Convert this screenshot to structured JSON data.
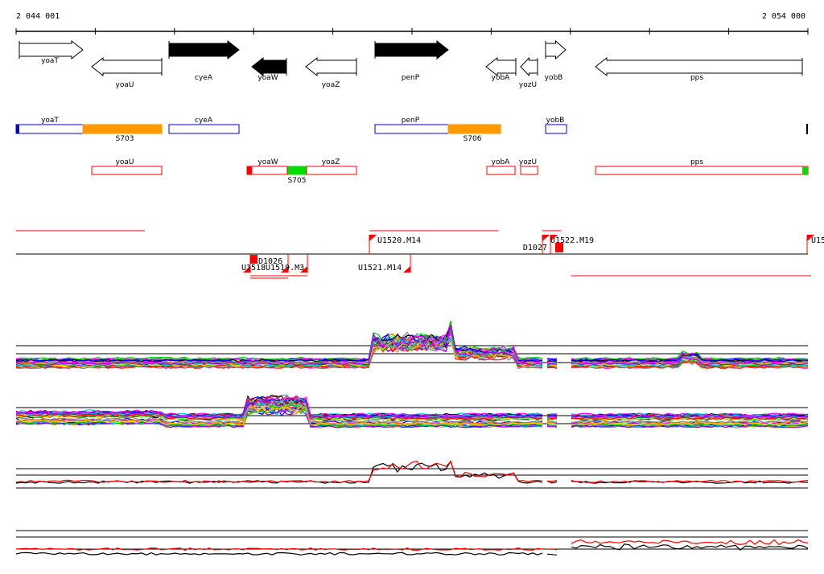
{
  "ruler": {
    "start_label": "2 044 001",
    "end_label": "2 054 000"
  },
  "genes": [
    {
      "label": "yoaT",
      "strand": "+",
      "filled": false
    },
    {
      "label": "yoaU",
      "strand": "-",
      "filled": false
    },
    {
      "label": "cyeA",
      "strand": "+",
      "filled": true
    },
    {
      "label": "yoaW",
      "strand": "-",
      "filled": true
    },
    {
      "label": "yoaZ",
      "strand": "-",
      "filled": false
    },
    {
      "label": "penP",
      "strand": "+",
      "filled": true
    },
    {
      "label": "yobA",
      "strand": "-",
      "filled": false
    },
    {
      "label": "yozU",
      "strand": "-",
      "filled": false
    },
    {
      "label": "yobB",
      "strand": "+",
      "filled": false
    },
    {
      "label": "pps",
      "strand": "-",
      "filled": false
    }
  ],
  "forward_features": [
    {
      "label": "yoaT",
      "kind": "gene"
    },
    {
      "label": "S703",
      "kind": "segment"
    },
    {
      "label": "cyeA",
      "kind": "gene"
    },
    {
      "label": "penP",
      "kind": "gene"
    },
    {
      "label": "S706",
      "kind": "segment"
    },
    {
      "label": "yobB",
      "kind": "gene"
    }
  ],
  "reverse_features": [
    {
      "label": "yoaU",
      "kind": "gene"
    },
    {
      "label": "yoaW",
      "kind": "gene"
    },
    {
      "label": "S705",
      "kind": "segment"
    },
    {
      "label": "yoaZ",
      "kind": "gene"
    },
    {
      "label": "yobA",
      "kind": "gene"
    },
    {
      "label": "yozU",
      "kind": "gene"
    },
    {
      "label": "pps",
      "kind": "gene"
    }
  ],
  "transcription_units": [
    {
      "label": "U1520.M14"
    },
    {
      "label": "D1027"
    },
    {
      "label": "U1522.M19"
    },
    {
      "label": "U15"
    },
    {
      "label": "D1026"
    },
    {
      "label": "U1518"
    },
    {
      "label": "U1519.M3"
    },
    {
      "label": "U1521.M14"
    }
  ],
  "colors": {
    "forward_box": "#0000cc",
    "reverse_box": "#ff0000",
    "segment_orange": "#ff9900",
    "segment_green": "#00dd00",
    "trace_palette": [
      "#ff0000",
      "#00cc00",
      "#0000ff",
      "#ff00ff",
      "#00cccc",
      "#ffcc00",
      "#888888",
      "#9900ff",
      "#ff8800",
      "#66ff66",
      "#000000"
    ]
  }
}
